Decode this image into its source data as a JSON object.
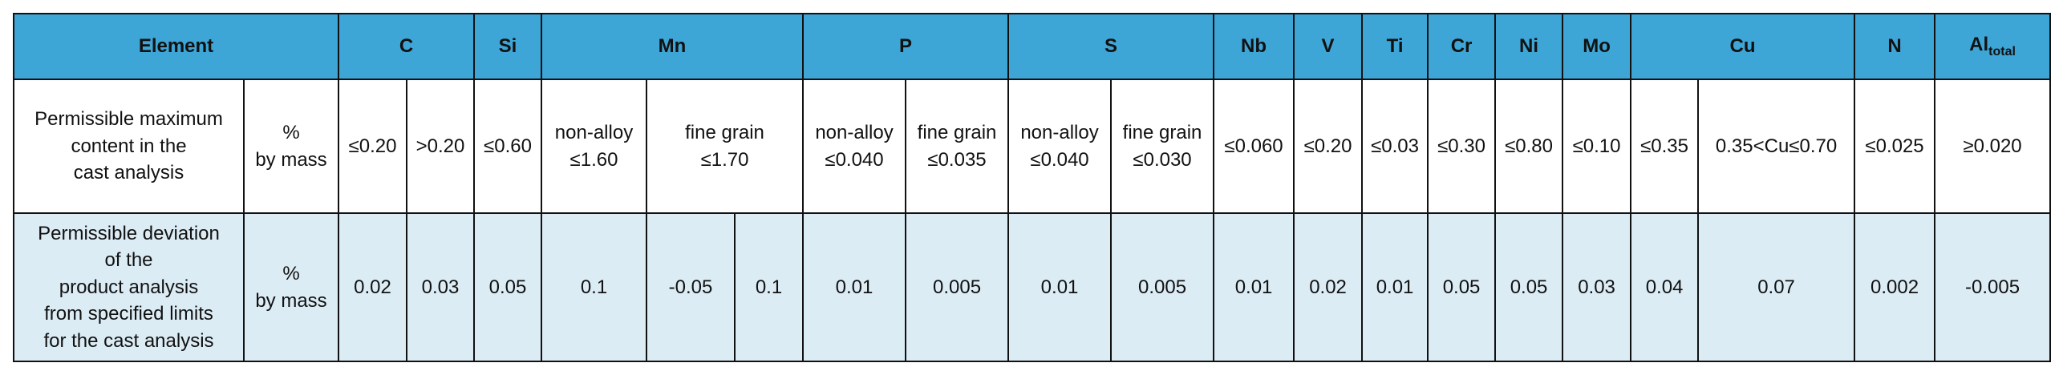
{
  "table": {
    "header": [
      "Element",
      "C",
      "Si",
      "Mn",
      "P",
      "S",
      "Nb",
      "V",
      "Ti",
      "Cr",
      "Ni",
      "Mo",
      "Cu",
      "N",
      {
        "text": "Al",
        "sub": "total"
      }
    ],
    "rows": [
      [
        "Permissible maximum\ncontent in the\ncast analysis",
        "%\nby mass",
        "≤0.20",
        ">0.20",
        "≤0.60",
        "non-alloy\n≤1.60",
        "fine grain\n≤1.70",
        "non-alloy\n≤0.040",
        "fine grain\n≤0.035",
        "non-alloy\n≤0.040",
        "fine grain\n≤0.030",
        "≤0.060",
        "≤0.20",
        "≤0.03",
        "≤0.30",
        "≤0.80",
        "≤0.10",
        "≤0.35",
        "0.35<Cu≤0.70",
        "≤0.025",
        "≥0.020"
      ],
      [
        "Permissible deviation\nof the\nproduct analysis\nfrom specified limits\nfor the cast analysis",
        "%\nby mass",
        "0.02",
        "0.03",
        "0.05",
        "0.1",
        "-0.05",
        "0.1",
        "0.01",
        "0.005",
        "0.01",
        "0.005",
        "0.01",
        "0.02",
        "0.01",
        "0.05",
        "0.05",
        "0.03",
        "0.04",
        "0.07",
        "0.002",
        "-0.005"
      ]
    ]
  }
}
